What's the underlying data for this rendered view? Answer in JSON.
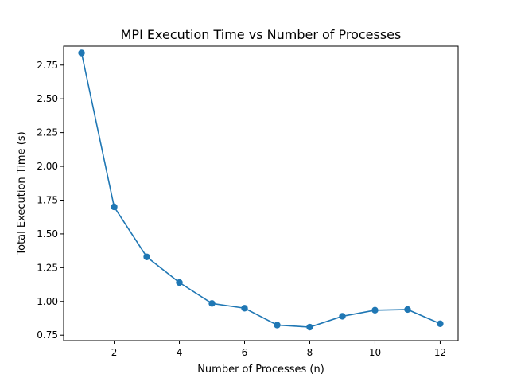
{
  "chart_data": {
    "type": "line",
    "title": "MPI Execution Time vs Number of Processes",
    "xlabel": "Number of Processes (n)",
    "ylabel": "Total Execution Time (s)",
    "xlim": [
      0.45,
      12.55
    ],
    "ylim": [
      0.71,
      2.89
    ],
    "x_ticks": [
      2,
      4,
      6,
      8,
      10,
      12
    ],
    "x_tick_labels": [
      "2",
      "4",
      "6",
      "8",
      "10",
      "12"
    ],
    "y_ticks": [
      0.75,
      1.0,
      1.25,
      1.5,
      1.75,
      2.0,
      2.25,
      2.5,
      2.75
    ],
    "y_tick_labels": [
      "0.75",
      "1.00",
      "1.25",
      "1.50",
      "1.75",
      "2.00",
      "2.25",
      "2.50",
      "2.75"
    ],
    "grid": false,
    "legend": "none",
    "series": [
      {
        "color": "#1f77b4",
        "marker": "circle",
        "x": [
          1,
          2,
          3,
          4,
          5,
          6,
          7,
          8,
          9,
          10,
          11,
          12
        ],
        "y": [
          2.84,
          1.7,
          1.33,
          1.14,
          0.985,
          0.95,
          0.825,
          0.81,
          0.89,
          0.935,
          0.94,
          0.835
        ]
      }
    ]
  }
}
